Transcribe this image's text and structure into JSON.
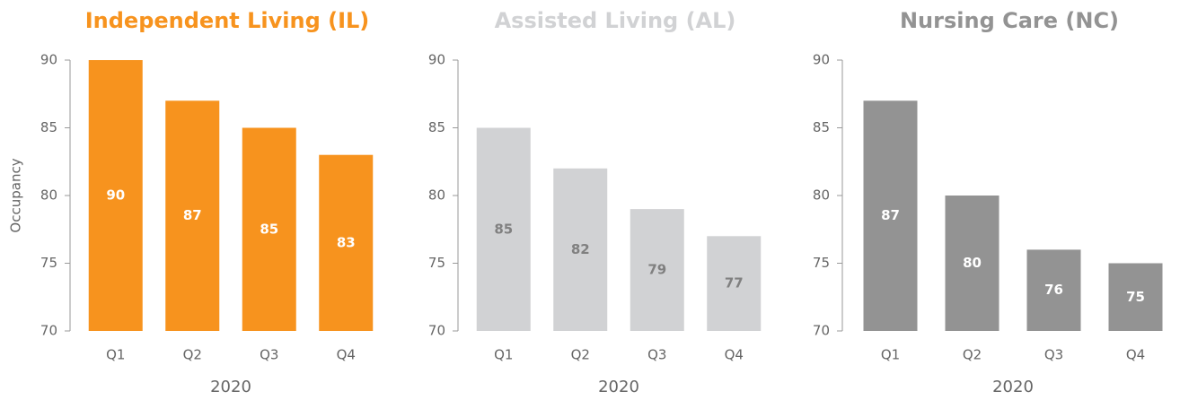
{
  "chart_data": [
    {
      "type": "bar",
      "title": "Independent Living (IL)",
      "categories": [
        "Q1",
        "Q2",
        "Q3",
        "Q4"
      ],
      "values": [
        90,
        87,
        85,
        83
      ],
      "color": "#f7931e",
      "label_color": "#ffffff",
      "xlabel": "2020",
      "ylabel": "Occupancy",
      "ylim": [
        70,
        90
      ],
      "yticks": [
        70,
        75,
        80,
        85,
        90
      ]
    },
    {
      "type": "bar",
      "title": "Assisted Living (AL)",
      "categories": [
        "Q1",
        "Q2",
        "Q3",
        "Q4"
      ],
      "values": [
        85,
        82,
        79,
        77
      ],
      "color": "#d1d2d4",
      "label_color": "#808080",
      "xlabel": "2020",
      "ylim": [
        70,
        90
      ],
      "yticks": [
        70,
        75,
        80,
        85,
        90
      ]
    },
    {
      "type": "bar",
      "title": "Nursing Care (NC)",
      "categories": [
        "Q1",
        "Q2",
        "Q3",
        "Q4"
      ],
      "values": [
        87,
        80,
        76,
        75
      ],
      "color": "#939393",
      "label_color": "#ffffff",
      "xlabel": "2020",
      "ylim": [
        70,
        90
      ],
      "yticks": [
        70,
        75,
        80,
        85,
        90
      ]
    }
  ]
}
